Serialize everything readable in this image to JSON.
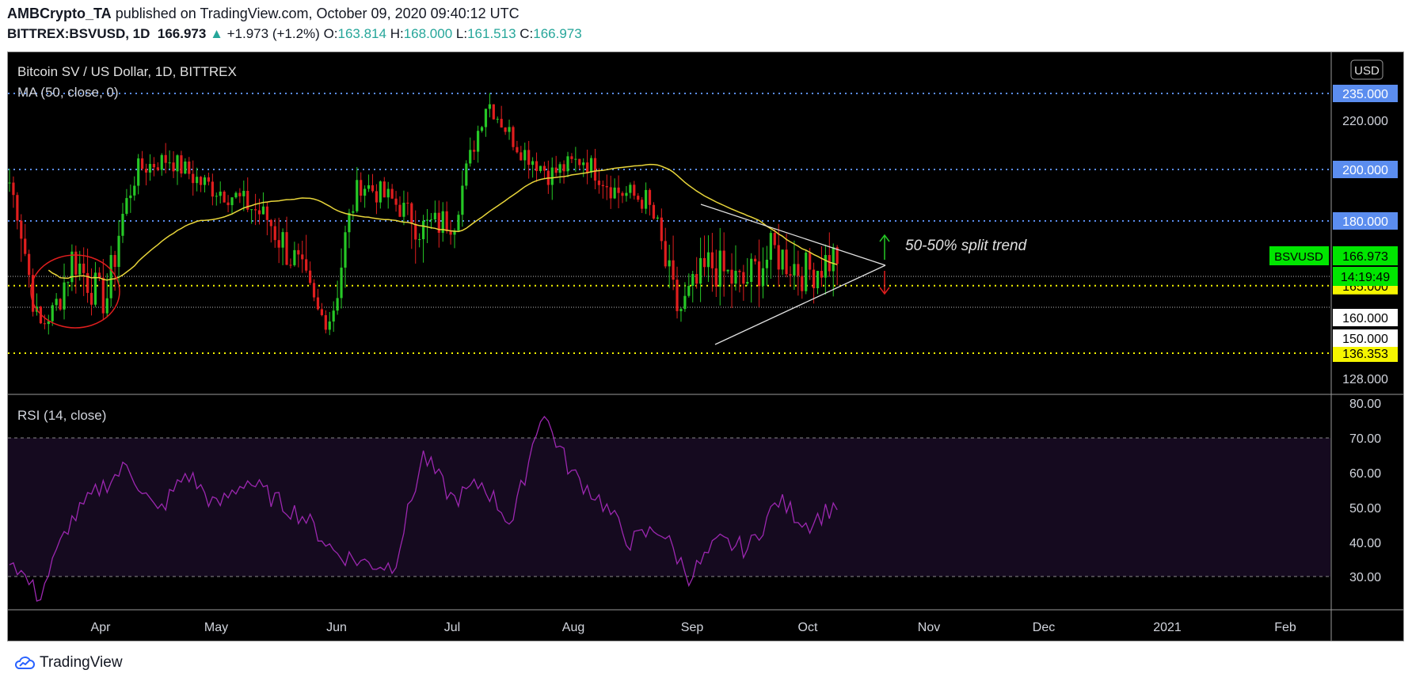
{
  "header": {
    "author": "AMBCrypto_TA",
    "published": "published on TradingView.com, October 09, 2020 09:40:12 UTC",
    "symbol": "BITTREX:BSVUSD, 1D",
    "last": "166.973",
    "change": "+1.973 (+1.2%)",
    "o_label": "O:",
    "o": "163.814",
    "h_label": "H:",
    "h": "168.000",
    "l_label": "L:",
    "l": "161.513",
    "c_label": "C:",
    "c": "166.973"
  },
  "pane_title": "Bitcoin SV / US Dollar, 1D, BITTREX",
  "ma_label": "MA (50, close, 0)",
  "rsi_label": "RSI (14, close)",
  "currency_button": "USD",
  "annotation": "50-50% split trend",
  "footer_brand": "TradingView",
  "colors": {
    "up": "#26c826",
    "down": "#e01e1e",
    "ma": "#e8d53a",
    "rsi": "#9c27b0",
    "blue_level": "#5b8def",
    "yellow_level": "#f5f500",
    "rsi_band": "#150a1f"
  },
  "chart_data": {
    "type": "candlestick",
    "x_axis_ticks": [
      "Apr",
      "May",
      "Jun",
      "Jul",
      "Aug",
      "Sep",
      "Oct",
      "Nov",
      "Dec",
      "2021",
      "Feb"
    ],
    "price_axis_ticks": [
      "220.000",
      "128.000"
    ],
    "rsi_axis_ticks": [
      "80.00",
      "70.00",
      "60.00",
      "50.00",
      "40.00",
      "30.00"
    ],
    "price_levels": [
      {
        "value": 235,
        "label": "235.000",
        "color": "blue"
      },
      {
        "value": 200,
        "label": "200.000",
        "color": "blue"
      },
      {
        "value": 180,
        "label": "180.000",
        "color": "blue"
      },
      {
        "value": 165,
        "label": "165.000",
        "color": "yellow"
      },
      {
        "value": 136.353,
        "label": "136.353",
        "color": "yellow"
      },
      {
        "value": 160,
        "label": "160.000",
        "color": "white"
      },
      {
        "value": 150,
        "label": "150.000",
        "color": "white"
      }
    ],
    "last_price": {
      "symbol": "BSVUSD",
      "value": "166.973",
      "countdown": "14:19:49"
    },
    "rsi_bands": [
      30,
      70
    ],
    "closes_sample": [
      195,
      150,
      172,
      160,
      200,
      205,
      195,
      190,
      182,
      170,
      152,
      195,
      188,
      178,
      182,
      232,
      210,
      198,
      205,
      192,
      188,
      158,
      170,
      165,
      173,
      168,
      172
    ],
    "rsi_sample": [
      36,
      24,
      45,
      55,
      62,
      48,
      60,
      50,
      58,
      52,
      47,
      37,
      34,
      33,
      65,
      52,
      57,
      45,
      78,
      60,
      52,
      40,
      44,
      30,
      40,
      38,
      52,
      45,
      51
    ]
  }
}
